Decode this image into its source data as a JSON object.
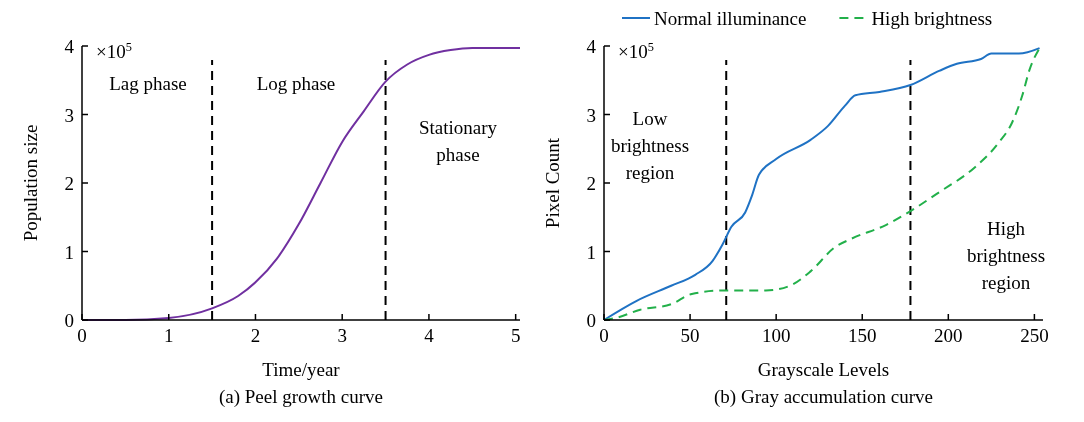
{
  "chart_data": [
    {
      "type": "line",
      "title": "(a) Peel growth curve",
      "xlabel": "Time/year",
      "ylabel": "Population size",
      "xlim": [
        0,
        5.05
      ],
      "xticks": [
        0,
        1,
        2,
        3,
        4,
        5
      ],
      "ylim": [
        0,
        4
      ],
      "yticks": [
        0,
        1,
        2,
        3,
        4
      ],
      "grid": false,
      "legend": false,
      "x": [
        0,
        0.5,
        1,
        1.5,
        1.8,
        2,
        2.25,
        2.5,
        2.75,
        3,
        3.25,
        3.5,
        3.75,
        4,
        4.25,
        4.5,
        5.05
      ],
      "series": [
        {
          "color": "#7030a0",
          "values": [
            0,
            0,
            0.03,
            0.17,
            0.35,
            0.55,
            0.9,
            1.4,
            2.0,
            2.6,
            3.05,
            3.48,
            3.73,
            3.87,
            3.94,
            3.97,
            3.97
          ]
        }
      ],
      "ref_lines": [
        {
          "axis": "x",
          "value": 1.5,
          "color": "#000000",
          "line_style": "dashed"
        },
        {
          "axis": "x",
          "value": 3.5,
          "color": "#000000",
          "line_style": "dashed"
        }
      ],
      "annotations": [
        "×10$^{5}$",
        "Lag phase",
        "Log phase",
        "Stationary phase"
      ]
    },
    {
      "type": "line",
      "title": "(b) Gray accumulation curve",
      "xlabel": "Grayscale Levels",
      "ylabel": "Pixel Count",
      "xlim": [
        0,
        255
      ],
      "xticks": [
        0,
        50,
        100,
        150,
        200,
        250
      ],
      "ylim": [
        0,
        4
      ],
      "yticks": [
        0,
        1,
        2,
        3,
        4
      ],
      "grid": false,
      "legend": "top",
      "series": [
        {
          "name": "Normal illuminance",
          "color": "#1f72c4",
          "line_style": "solid",
          "x": [
            0,
            19,
            39,
            53,
            63,
            69,
            74,
            82,
            86,
            90,
            100,
            120,
            130,
            140,
            146,
            160,
            178,
            195,
            205,
            219,
            225,
            241,
            253
          ],
          "values": [
            0,
            0.28,
            0.5,
            0.66,
            0.86,
            1.11,
            1.36,
            1.57,
            1.82,
            2.12,
            2.35,
            2.63,
            2.83,
            3.13,
            3.28,
            3.33,
            3.43,
            3.64,
            3.74,
            3.81,
            3.89,
            3.89,
            3.97
          ]
        },
        {
          "name": "High brightness",
          "color": "#22b04a",
          "line_style": "dashed",
          "x": [
            0,
            7,
            21,
            39,
            51,
            69,
            94,
            108,
            120,
            134,
            144,
            164,
            178,
            195,
            215,
            229,
            237,
            243,
            247,
            253
          ],
          "values": [
            0,
            0.03,
            0.15,
            0.23,
            0.38,
            0.43,
            0.43,
            0.5,
            0.71,
            1.06,
            1.19,
            1.39,
            1.59,
            1.87,
            2.22,
            2.58,
            2.88,
            3.28,
            3.64,
            3.97
          ]
        }
      ],
      "ref_lines": [
        {
          "axis": "x",
          "value": 71,
          "color": "#000000",
          "line_style": "dashed"
        },
        {
          "axis": "x",
          "value": 178,
          "color": "#000000",
          "line_style": "dashed"
        }
      ],
      "annotations": [
        "×10$^{5}$",
        "Low brightness region",
        "High brightness region"
      ]
    }
  ]
}
